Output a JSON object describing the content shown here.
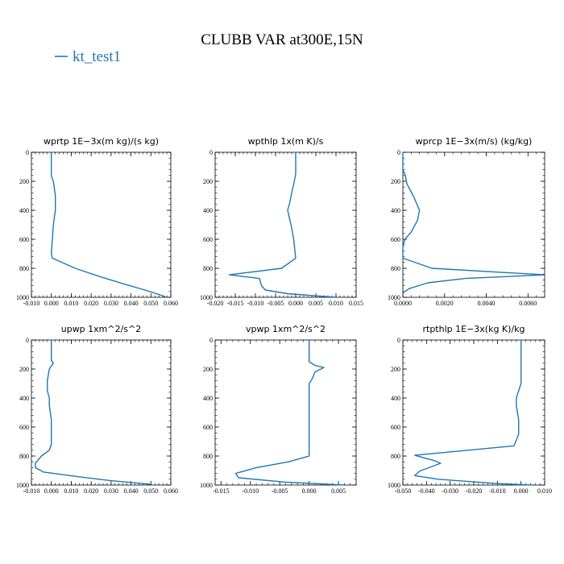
{
  "figure": {
    "title": "CLUBB VAR at300E,15N",
    "legend_label": "kt_test1",
    "line_color": "#1f77b4"
  },
  "chart_data": [
    {
      "type": "line",
      "title": "wprtp  1E−3x(m kg)/(s kg)",
      "xlim": [
        -0.01,
        0.06
      ],
      "ylim": [
        1000,
        0
      ],
      "xticks": [
        -0.01,
        0.0,
        0.01,
        0.02,
        0.03,
        0.04,
        0.05,
        0.06
      ],
      "xtick_labels": [
        "-0.010",
        "0.000",
        "0.010",
        "0.020",
        "0.030",
        "0.040",
        "0.050",
        "0.060"
      ],
      "yticks": [
        0,
        200,
        400,
        600,
        800,
        1000
      ],
      "ytick_labels": [
        "0",
        "200",
        "400",
        "600",
        "800",
        "1000"
      ],
      "series": [
        {
          "name": "kt_test1",
          "x": [
            0.0,
            0.0,
            0.0,
            0.001,
            0.002,
            0.002,
            0.001,
            0.0005,
            0.0,
            0.0005,
            0.012,
            0.025,
            0.037,
            0.047,
            0.054,
            0.058
          ],
          "y": [
            0,
            100,
            160,
            200,
            300,
            400,
            500,
            600,
            700,
            730,
            800,
            860,
            910,
            950,
            980,
            1000
          ]
        }
      ]
    },
    {
      "type": "line",
      "title": "wpthlp  1x(m K)/s",
      "xlim": [
        -0.02,
        0.015
      ],
      "ylim": [
        1000,
        0
      ],
      "xticks": [
        -0.02,
        -0.015,
        -0.01,
        -0.005,
        0.0,
        0.005,
        0.01,
        0.015
      ],
      "xtick_labels": [
        "-0.020",
        "-0.015",
        "-0.010",
        "-0.005",
        "0.000",
        "0.005",
        "0.010",
        "0.015"
      ],
      "yticks": [
        0,
        200,
        400,
        600,
        800,
        1000
      ],
      "ytick_labels": [
        "0",
        "200",
        "400",
        "600",
        "800",
        "1000"
      ],
      "series": [
        {
          "name": "kt_test1",
          "x": [
            0.0,
            0.0,
            -0.0005,
            -0.001,
            -0.0015,
            -0.002,
            -0.0015,
            -0.001,
            -0.0005,
            0.0,
            -0.0035,
            -0.0165,
            -0.009,
            -0.0085,
            -0.0075,
            -0.002,
            0.01
          ],
          "y": [
            0,
            150,
            220,
            280,
            350,
            400,
            460,
            520,
            600,
            730,
            800,
            845,
            870,
            920,
            950,
            975,
            1000
          ]
        }
      ]
    },
    {
      "type": "line",
      "title": "wprcp  1E−3x(m/s) (kg/kg)",
      "xlim": [
        0.0,
        0.0068
      ],
      "ylim": [
        1000,
        0
      ],
      "xticks": [
        0.0,
        0.002,
        0.004,
        0.006
      ],
      "xtick_labels": [
        "0.0000",
        "0.0020",
        "0.0040",
        "0.0060"
      ],
      "yticks": [
        0,
        200,
        400,
        600,
        800,
        1000
      ],
      "ytick_labels": [
        "0",
        "200",
        "400",
        "600",
        "800",
        "1000"
      ],
      "series": [
        {
          "name": "kt_test1",
          "x": [
            0.0,
            0.0,
            0.0001,
            0.0002,
            0.0005,
            0.0008,
            0.0007,
            0.0004,
            0.0001,
            0.0,
            0.0,
            0.0014,
            0.0068,
            0.003,
            0.0012,
            0.0003,
            0.0
          ],
          "y": [
            0,
            120,
            150,
            220,
            300,
            400,
            470,
            550,
            600,
            650,
            730,
            800,
            845,
            870,
            900,
            940,
            970
          ]
        }
      ]
    },
    {
      "type": "line",
      "title": "upwp  1xm^2/s^2",
      "xlim": [
        -0.01,
        0.06
      ],
      "ylim": [
        1000,
        0
      ],
      "xticks": [
        -0.01,
        0.0,
        0.01,
        0.02,
        0.03,
        0.04,
        0.05,
        0.06
      ],
      "xtick_labels": [
        "-0.010",
        "0.000",
        "0.010",
        "0.020",
        "0.030",
        "0.040",
        "0.050",
        "0.060"
      ],
      "yticks": [
        0,
        200,
        400,
        600,
        800,
        1000
      ],
      "ytick_labels": [
        "0",
        "200",
        "400",
        "600",
        "800",
        "1000"
      ],
      "series": [
        {
          "name": "kt_test1",
          "x": [
            0.0,
            0.0,
            0.001,
            -0.001,
            -0.002,
            -0.002,
            -0.001,
            -0.001,
            0.0,
            0.0,
            -0.001,
            -0.005,
            -0.008,
            -0.008,
            -0.004,
            0.012,
            0.03,
            0.05
          ],
          "y": [
            0,
            140,
            160,
            200,
            280,
            350,
            400,
            450,
            550,
            720,
            760,
            800,
            850,
            880,
            910,
            940,
            970,
            995
          ]
        }
      ]
    },
    {
      "type": "line",
      "title": "vpwp  1xm^2/s^2",
      "xlim": [
        -0.016,
        0.008
      ],
      "ylim": [
        1000,
        0
      ],
      "xticks": [
        -0.015,
        -0.01,
        -0.005,
        0.0,
        0.005
      ],
      "xtick_labels": [
        "-0.015",
        "-0.010",
        "-0.005",
        "0.000",
        "0.005"
      ],
      "yticks": [
        0,
        200,
        400,
        600,
        800,
        1000
      ],
      "ytick_labels": [
        "0",
        "200",
        "400",
        "600",
        "800",
        "1000"
      ],
      "series": [
        {
          "name": "kt_test1",
          "x": [
            0.0,
            0.0,
            0.001,
            0.0025,
            0.001,
            0.0005,
            0.0,
            0.0,
            0.0,
            0.0,
            0.0,
            -0.0035,
            -0.009,
            -0.0125,
            -0.012,
            -0.004,
            0.006
          ],
          "y": [
            0,
            150,
            175,
            190,
            220,
            270,
            300,
            400,
            550,
            700,
            800,
            840,
            880,
            920,
            950,
            980,
            1000
          ]
        }
      ]
    },
    {
      "type": "line",
      "title": "rtpthlp  1E−3x(kg K)/kg",
      "xlim": [
        -0.05,
        0.01
      ],
      "ylim": [
        1000,
        0
      ],
      "xticks": [
        -0.05,
        -0.04,
        -0.03,
        -0.02,
        -0.01,
        0.0,
        0.01
      ],
      "xtick_labels": [
        "-0.050",
        "-0.040",
        "-0.030",
        "-0.020",
        "-0.010",
        "0.000",
        "0.010"
      ],
      "yticks": [
        0,
        200,
        400,
        600,
        800,
        1000
      ],
      "ytick_labels": [
        "0",
        "200",
        "400",
        "600",
        "800",
        "1000"
      ],
      "series": [
        {
          "name": "kt_test1",
          "x": [
            0.0,
            0.0,
            0.0,
            -0.001,
            -0.002,
            -0.002,
            -0.001,
            -0.001,
            -0.003,
            -0.045,
            -0.037,
            -0.034,
            -0.043,
            -0.045,
            -0.035,
            -0.01,
            0.005
          ],
          "y": [
            0,
            150,
            300,
            350,
            400,
            450,
            550,
            650,
            730,
            795,
            830,
            850,
            905,
            935,
            960,
            990,
            1000
          ]
        }
      ]
    }
  ]
}
